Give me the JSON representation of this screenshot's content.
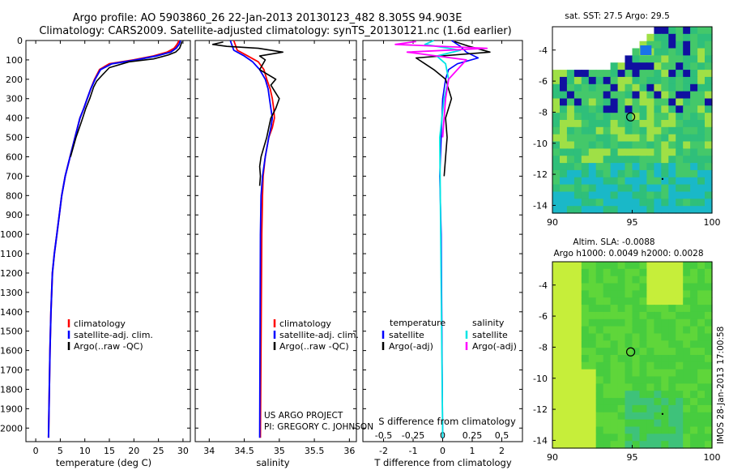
{
  "title": {
    "line1": "Argo profile: AO 5903860_26 22-Jan-2013 20130123_482 8.305S 94.903E",
    "line2": "Climatology: CARS2009. Satellite-adjusted climatology: synTS_20130121.nc (1.6d earlier)"
  },
  "colors": {
    "clim": "#ff0000",
    "sat": "#0000ff",
    "argo": "#000000",
    "sal_sat": "#00e5e5",
    "sal_argo": "#ff00ff"
  },
  "chart_data": [
    {
      "type": "line",
      "name": "temperature-profile",
      "xlabel": "temperature (deg C)",
      "ylabel": "",
      "xlim": [
        -2,
        31.5
      ],
      "ylim": [
        2070,
        0
      ],
      "xticks": [
        "0",
        "5",
        "10",
        "15",
        "20",
        "25",
        "30"
      ],
      "yticks": [
        "0",
        "100",
        "200",
        "300",
        "400",
        "500",
        "600",
        "700",
        "800",
        "900",
        "1000",
        "1100",
        "1200",
        "1300",
        "1400",
        "1500",
        "1600",
        "1700",
        "1800",
        "1900",
        "2000"
      ],
      "legend": [
        "climatology",
        "satellite-adj. clim.",
        "Argo(..raw -QC)"
      ],
      "series": [
        {
          "name": "climatology",
          "x": [
            29.2,
            28.8,
            28.2,
            26.8,
            24,
            20,
            15,
            13,
            12,
            11.2,
            10.5,
            9.8,
            9,
            8,
            7,
            6,
            5.3,
            4.8,
            4.3,
            3.8,
            3.4,
            3.1,
            2.9,
            2.6
          ],
          "y": [
            0,
            20,
            40,
            60,
            80,
            100,
            120,
            150,
            200,
            250,
            300,
            350,
            400,
            500,
            600,
            700,
            800,
            900,
            1000,
            1100,
            1200,
            1400,
            1600,
            2050
          ]
        },
        {
          "name": "satellite-adj. clim.",
          "x": [
            29.5,
            29.2,
            28.6,
            27.5,
            24.5,
            20.5,
            15.5,
            13.2,
            12.1,
            11.2,
            10.5,
            9.8,
            9,
            8,
            7,
            6,
            5.3,
            4.8,
            4.3,
            3.8,
            3.4,
            3.1,
            2.9,
            2.6
          ],
          "y": [
            0,
            20,
            40,
            60,
            80,
            100,
            120,
            150,
            200,
            250,
            300,
            350,
            400,
            500,
            600,
            700,
            800,
            900,
            1000,
            1100,
            1200,
            1400,
            1600,
            2050
          ]
        },
        {
          "name": "Argo",
          "x": [
            29.8,
            29.6,
            29.3,
            28.5,
            27,
            24,
            19,
            15,
            13.5,
            12.4,
            11.8,
            11,
            10.2,
            9.3,
            8.2,
            7.1
          ],
          "y": [
            5,
            20,
            40,
            60,
            75,
            95,
            110,
            140,
            180,
            210,
            240,
            300,
            350,
            420,
            500,
            600
          ]
        }
      ]
    },
    {
      "type": "line",
      "name": "salinity-profile",
      "xlabel": "salinity",
      "xlim": [
        33.8,
        36.1
      ],
      "ylim": [
        2070,
        0
      ],
      "xticks": [
        "34",
        "34.5",
        "35",
        "35.5",
        "36"
      ],
      "legend": [
        "climatology",
        "satellite-adj. clim.",
        "Argo(..raw -QC)"
      ],
      "series": [
        {
          "name": "climatology",
          "x": [
            34.35,
            34.4,
            34.55,
            34.7,
            34.78,
            34.82,
            34.87,
            34.9,
            34.92,
            34.93,
            34.9,
            34.85,
            34.8,
            34.77,
            34.76,
            34.75,
            34.73
          ],
          "y": [
            0,
            50,
            80,
            110,
            150,
            200,
            250,
            300,
            350,
            400,
            450,
            500,
            600,
            700,
            800,
            1000,
            2050
          ]
        },
        {
          "name": "satellite-adj. clim.",
          "x": [
            34.3,
            34.35,
            34.5,
            34.62,
            34.72,
            34.8,
            34.84,
            34.86,
            34.88,
            34.9,
            34.88,
            34.85,
            34.8,
            34.76,
            34.74,
            34.73,
            34.72
          ],
          "y": [
            0,
            50,
            80,
            110,
            150,
            200,
            250,
            300,
            350,
            400,
            450,
            500,
            600,
            700,
            800,
            1000,
            2050
          ]
        },
        {
          "name": "Argo",
          "x": [
            34.2,
            34.05,
            34.25,
            34.7,
            35.05,
            34.72,
            34.8,
            34.72,
            34.95,
            34.88,
            34.93,
            35.0,
            34.95,
            34.88,
            34.85,
            34.82,
            34.78,
            34.74,
            34.72,
            34.73,
            34.72
          ],
          "y": [
            8,
            20,
            30,
            40,
            60,
            80,
            100,
            150,
            200,
            230,
            260,
            300,
            350,
            400,
            450,
            500,
            550,
            600,
            650,
            700,
            750
          ]
        }
      ]
    },
    {
      "type": "line",
      "name": "difference-profile",
      "xlabel": "T difference from climatology",
      "xlabel_top": "S difference from climatology",
      "xlim": [
        -2.7,
        2.7
      ],
      "ylim": [
        2070,
        0
      ],
      "xticks": [
        "-2",
        "-1",
        "0",
        "1",
        "2"
      ],
      "xticks_top": [
        "-0.5",
        "-0.25",
        "0",
        "0.25",
        "0.5"
      ],
      "legend_t": [
        "temperature",
        "satellite",
        "Argo(-adj)"
      ],
      "legend_s": [
        "salinity",
        "satellite",
        "Argo(-adj)"
      ],
      "series": [
        {
          "name": "T satellite",
          "x": [
            0.3,
            0.6,
            0.8,
            1.2,
            0.5,
            0.2,
            0.1,
            0,
            -0.05,
            -0.1,
            -0.05,
            0
          ],
          "y": [
            0,
            30,
            60,
            90,
            120,
            150,
            200,
            300,
            500,
            700,
            1000,
            2050
          ]
        },
        {
          "name": "T Argo",
          "x": [
            0.4,
            0.9,
            1.6,
            -0.9,
            -0.6,
            -0.3,
            0.1,
            0.3,
            0.1,
            0.15,
            0.05
          ],
          "y": [
            5,
            30,
            60,
            90,
            120,
            150,
            200,
            300,
            400,
            500,
            700
          ]
        },
        {
          "name": "S satellite",
          "x": [
            -0.3,
            -0.6,
            0.6,
            -0.2,
            0.1,
            0.2,
            0.05,
            -0.1,
            0
          ],
          "y": [
            0,
            20,
            50,
            80,
            120,
            200,
            300,
            500,
            2050
          ]
        },
        {
          "name": "S Argo",
          "x": [
            -0.9,
            -1.6,
            1.5,
            -1.2,
            0.8,
            0.5,
            0.2,
            0.1,
            0
          ],
          "y": [
            5,
            20,
            40,
            60,
            100,
            150,
            200,
            300,
            500
          ]
        }
      ]
    },
    {
      "type": "heatmap",
      "name": "sst-map",
      "title": "sat. SST: 27.5 Argo: 29.5",
      "xlim": [
        90,
        100
      ],
      "ylim": [
        -14.5,
        -2.5
      ],
      "xticks": [
        "90",
        "95",
        "100"
      ],
      "yticks": [
        "-4",
        "-6",
        "-8",
        "-10",
        "-12",
        "-14"
      ],
      "argo_position": [
        94.903,
        -8.305
      ]
    },
    {
      "type": "heatmap",
      "name": "sla-map",
      "title_line1": "Altim. SLA: -0.0088",
      "title_line2": "Argo h1000: 0.0049 h2000: 0.0028",
      "xlim": [
        90,
        100
      ],
      "ylim": [
        -14.5,
        -2.5
      ],
      "xticks": [
        "90",
        "95",
        "100"
      ],
      "yticks": [
        "-4",
        "-6",
        "-8",
        "-10",
        "-12",
        "-14"
      ],
      "argo_position": [
        94.903,
        -8.305
      ]
    }
  ],
  "credits": {
    "project": "US ARGO PROJECT",
    "pi": "PI: GREGORY C. JOHNSON",
    "stamp": "IMOS 28-Jan-2013 17:00:58"
  }
}
